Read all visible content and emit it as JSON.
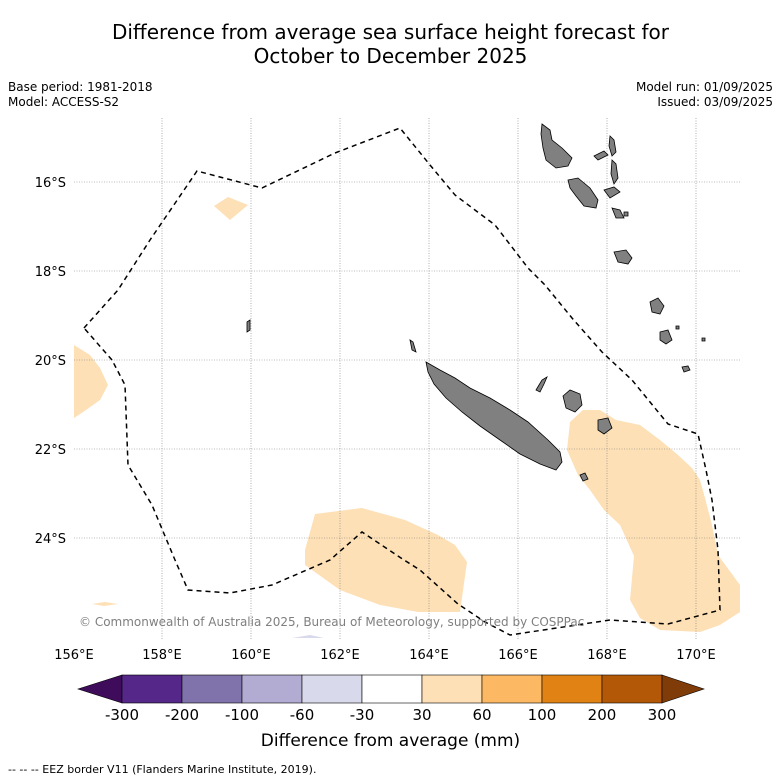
{
  "title_line1": "Difference from average sea surface height forecast for",
  "title_line2": "October to December 2025",
  "meta": {
    "base_period": "Base period: 1981-2018",
    "model": "Model: ACCESS-S2",
    "model_run": "Model run: 01/09/2025",
    "issued": "Issued: 03/09/2025"
  },
  "map": {
    "lat_labels": [
      "16°S",
      "18°S",
      "20°S",
      "22°S",
      "24°S"
    ],
    "lon_labels": [
      "156°E",
      "158°E",
      "160°E",
      "162°E",
      "164°E",
      "166°E",
      "168°E",
      "170°E"
    ],
    "copyright": "© Commonwealth of Australia 2025, Bureau of Meteorology, supported by COSPPac",
    "land_color": "#808080",
    "anomaly_color_30_60": "#fde0b6",
    "anomaly_color_neg30_neg60": "#d9d9ec"
  },
  "colorbar": {
    "ticks": [
      "-300",
      "-200",
      "-100",
      "-60",
      "-30",
      "30",
      "60",
      "100",
      "200",
      "300"
    ],
    "colors": [
      "#3f0b5b",
      "#542788",
      "#8073ac",
      "#b2abd2",
      "#d8daeb",
      "#ffffff",
      "#fee0b6",
      "#fdb863",
      "#e08214",
      "#b35806",
      "#7f3b08"
    ],
    "title": "Difference from average (mm)"
  },
  "footer": "--  --  -- EEZ border V11 (Flanders Marine Institute, 2019)."
}
